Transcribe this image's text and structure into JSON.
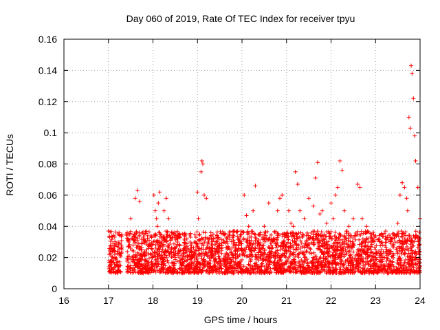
{
  "chart_data": {
    "type": "scatter",
    "title": "Day 060 of 2019, Rate Of TEC Index for receiver tpyu",
    "xlabel": "GPS time / hours",
    "ylabel": "ROTI / TECUs",
    "xlim": [
      16,
      24
    ],
    "ylim": [
      0,
      0.16
    ],
    "grid": true,
    "marker": "+",
    "color": "#ff0000",
    "xticks": [
      16,
      17,
      18,
      19,
      20,
      21,
      22,
      23,
      24
    ],
    "xtick_labels": [
      "16",
      "17",
      "18",
      "19",
      "20",
      "21",
      "22",
      "23",
      "24"
    ],
    "yticks": [
      0,
      0.02,
      0.04,
      0.06,
      0.08,
      0.1,
      0.12,
      0.14,
      0.16
    ],
    "ytick_labels": [
      "0",
      "0.02",
      "0.04",
      "0.06",
      "0.08",
      "0.1",
      "0.12",
      "0.14",
      "0.16"
    ],
    "series": [
      {
        "name": "ROTI",
        "x": [
          17.0,
          17.02,
          17.05,
          17.08,
          17.1,
          17.15,
          17.2,
          17.25,
          17.45,
          17.5,
          17.55,
          17.6,
          17.65,
          17.7,
          17.75,
          17.8,
          17.9,
          18.0,
          18.02,
          18.05,
          18.08,
          18.1,
          18.12,
          18.15,
          18.2,
          18.25,
          18.3,
          18.35,
          18.4,
          18.5,
          18.6,
          18.7,
          18.8,
          18.9,
          19.0,
          19.02,
          19.05,
          19.08,
          19.1,
          19.12,
          19.15,
          19.2,
          19.25,
          19.3,
          19.4,
          19.5,
          19.6,
          19.7,
          19.8,
          19.9,
          20.0,
          20.05,
          20.1,
          20.15,
          20.2,
          20.25,
          20.3,
          20.35,
          20.4,
          20.5,
          20.6,
          20.7,
          20.8,
          20.85,
          20.9,
          21.0,
          21.05,
          21.1,
          21.15,
          21.2,
          21.25,
          21.3,
          21.4,
          21.5,
          21.6,
          21.65,
          21.7,
          21.75,
          21.8,
          21.9,
          22.0,
          22.05,
          22.1,
          22.15,
          22.2,
          22.25,
          22.3,
          22.4,
          22.5,
          22.6,
          22.65,
          22.7,
          22.8,
          22.9,
          23.0,
          23.1,
          23.2,
          23.3,
          23.4,
          23.5,
          23.55,
          23.6,
          23.65,
          23.7,
          23.72,
          23.75,
          23.78,
          23.8,
          23.82,
          23.85,
          23.88,
          23.9,
          23.95,
          24.0
        ],
        "y": [
          0.037,
          0.022,
          0.028,
          0.018,
          0.025,
          0.02,
          0.024,
          0.015,
          0.03,
          0.045,
          0.035,
          0.058,
          0.063,
          0.056,
          0.025,
          0.03,
          0.028,
          0.012,
          0.06,
          0.05,
          0.045,
          0.04,
          0.055,
          0.062,
          0.03,
          0.05,
          0.058,
          0.045,
          0.025,
          0.02,
          0.018,
          0.028,
          0.025,
          0.02,
          0.062,
          0.045,
          0.035,
          0.075,
          0.082,
          0.08,
          0.06,
          0.058,
          0.03,
          0.025,
          0.022,
          0.028,
          0.03,
          0.026,
          0.02,
          0.024,
          0.025,
          0.06,
          0.047,
          0.04,
          0.025,
          0.05,
          0.066,
          0.03,
          0.028,
          0.04,
          0.055,
          0.032,
          0.05,
          0.058,
          0.06,
          0.035,
          0.05,
          0.042,
          0.04,
          0.075,
          0.067,
          0.05,
          0.045,
          0.058,
          0.053,
          0.071,
          0.081,
          0.048,
          0.05,
          0.042,
          0.055,
          0.045,
          0.06,
          0.065,
          0.082,
          0.076,
          0.05,
          0.04,
          0.045,
          0.067,
          0.065,
          0.045,
          0.04,
          0.03,
          0.02,
          0.018,
          0.02,
          0.022,
          0.035,
          0.042,
          0.06,
          0.068,
          0.065,
          0.058,
          0.05,
          0.11,
          0.103,
          0.143,
          0.138,
          0.122,
          0.098,
          0.082,
          0.065,
          0.045
        ]
      }
    ]
  }
}
